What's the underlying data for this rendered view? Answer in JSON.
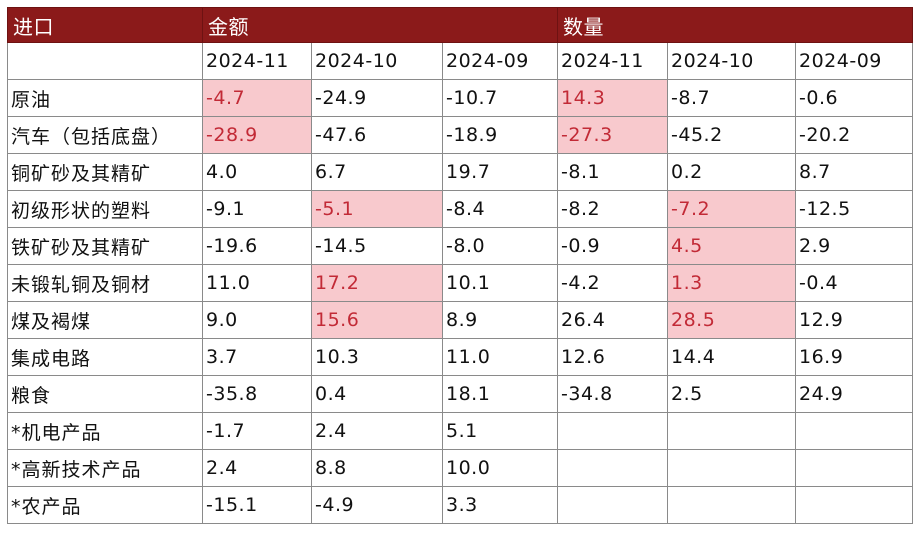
{
  "header": {
    "category_label": "进口",
    "amount_label": "金额",
    "quantity_label": "数量"
  },
  "periods": [
    "2024-11",
    "2024-10",
    "2024-09",
    "2024-11",
    "2024-10",
    "2024-09"
  ],
  "rows": [
    {
      "name": "原油",
      "values": [
        "-4.7",
        "-24.9",
        "-10.7",
        "14.3",
        "-8.7",
        "-0.6"
      ],
      "highlight": [
        true,
        false,
        false,
        true,
        false,
        false
      ]
    },
    {
      "name": "汽车（包括底盘）",
      "values": [
        "-28.9",
        "-47.6",
        "-18.9",
        "-27.3",
        "-45.2",
        "-20.2"
      ],
      "highlight": [
        true,
        false,
        false,
        true,
        false,
        false
      ]
    },
    {
      "name": "铜矿砂及其精矿",
      "values": [
        "4.0",
        "6.7",
        "19.7",
        "-8.1",
        "0.2",
        "8.7"
      ],
      "highlight": [
        false,
        false,
        false,
        false,
        false,
        false
      ]
    },
    {
      "name": "初级形状的塑料",
      "values": [
        "-9.1",
        "-5.1",
        "-8.4",
        "-8.2",
        "-7.2",
        "-12.5"
      ],
      "highlight": [
        false,
        true,
        false,
        false,
        true,
        false
      ]
    },
    {
      "name": "铁矿砂及其精矿",
      "values": [
        "-19.6",
        "-14.5",
        "-8.0",
        "-0.9",
        "4.5",
        "2.9"
      ],
      "highlight": [
        false,
        false,
        false,
        false,
        true,
        false
      ]
    },
    {
      "name": "未锻轧铜及铜材",
      "values": [
        "11.0",
        "17.2",
        "10.1",
        "-4.2",
        "1.3",
        "-0.4"
      ],
      "highlight": [
        false,
        true,
        false,
        false,
        true,
        false
      ]
    },
    {
      "name": "煤及褐煤",
      "values": [
        "9.0",
        "15.6",
        "8.9",
        "26.4",
        "28.5",
        "12.9"
      ],
      "highlight": [
        false,
        true,
        false,
        false,
        true,
        false
      ]
    },
    {
      "name": "集成电路",
      "values": [
        "3.7",
        "10.3",
        "11.0",
        "12.6",
        "14.4",
        "16.9"
      ],
      "highlight": [
        false,
        false,
        false,
        false,
        false,
        false
      ]
    },
    {
      "name": "粮食",
      "values": [
        "-35.8",
        "0.4",
        "18.1",
        "-34.8",
        "2.5",
        "24.9"
      ],
      "highlight": [
        false,
        false,
        false,
        false,
        false,
        false
      ]
    },
    {
      "name": "*机电产品",
      "values": [
        "-1.7",
        "2.4",
        "5.1",
        "",
        "",
        ""
      ],
      "highlight": [
        false,
        false,
        false,
        false,
        false,
        false
      ]
    },
    {
      "name": "*高新技术产品",
      "values": [
        "2.4",
        "8.8",
        "10.0",
        "",
        "",
        ""
      ],
      "highlight": [
        false,
        false,
        false,
        false,
        false,
        false
      ]
    },
    {
      "name": "*农产品",
      "values": [
        "-15.1",
        "-4.9",
        "3.3",
        "",
        "",
        ""
      ],
      "highlight": [
        false,
        false,
        false,
        false,
        false,
        false
      ]
    }
  ],
  "colors": {
    "header_bg": "#8b1a1a",
    "highlight_bg": "#f8c9cd",
    "highlight_text": "#c22a36"
  }
}
